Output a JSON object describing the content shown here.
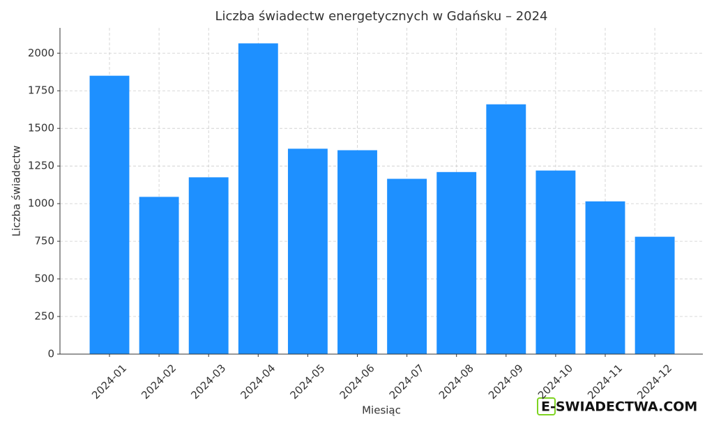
{
  "chart_data": {
    "type": "bar",
    "title": "Liczba świadectw energetycznych w Gdańsku – 2024",
    "x_label": "Miesiąc",
    "y_label": "Liczba świadectw",
    "categories": [
      "2024-01",
      "2024-02",
      "2024-03",
      "2024-04",
      "2024-05",
      "2024-06",
      "2024-07",
      "2024-08",
      "2024-09",
      "2024-10",
      "2024-11",
      "2024-12"
    ],
    "values": [
      1850,
      1045,
      1175,
      2065,
      1365,
      1355,
      1165,
      1210,
      1660,
      1220,
      1015,
      780
    ],
    "color": "#1e90ff",
    "ylim": [
      0,
      2168
    ],
    "yticks": [
      0,
      250,
      500,
      750,
      1000,
      1250,
      1500,
      1750,
      2000
    ],
    "grid": true,
    "watermark": "E-SWIADECTWA.COM"
  }
}
